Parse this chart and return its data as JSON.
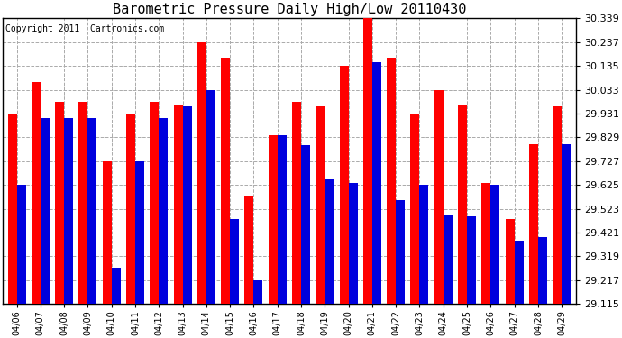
{
  "title": "Barometric Pressure Daily High/Low 20110430",
  "copyright": "Copyright 2011  Cartronics.com",
  "dates": [
    "04/06",
    "04/07",
    "04/08",
    "04/09",
    "04/10",
    "04/11",
    "04/12",
    "04/13",
    "04/14",
    "04/15",
    "04/16",
    "04/17",
    "04/18",
    "04/19",
    "04/20",
    "04/21",
    "04/22",
    "04/23",
    "04/24",
    "04/25",
    "04/26",
    "04/27",
    "04/28",
    "04/29"
  ],
  "highs": [
    29.931,
    30.068,
    29.98,
    29.98,
    29.727,
    29.931,
    29.98,
    29.97,
    30.237,
    30.17,
    29.58,
    29.838,
    29.98,
    29.96,
    30.135,
    30.339,
    30.17,
    29.931,
    30.033,
    29.965,
    29.635,
    29.478,
    29.8,
    29.96
  ],
  "lows": [
    29.625,
    29.912,
    29.912,
    29.912,
    29.27,
    29.727,
    29.912,
    29.96,
    30.033,
    29.48,
    29.217,
    29.838,
    29.795,
    29.65,
    29.635,
    30.15,
    29.56,
    29.625,
    29.5,
    29.49,
    29.625,
    29.385,
    29.4,
    29.8
  ],
  "high_color": "#FF0000",
  "low_color": "#0000DD",
  "background_color": "#FFFFFF",
  "plot_bg_color": "#FFFFFF",
  "grid_color": "#AAAAAA",
  "yticks": [
    29.115,
    29.217,
    29.319,
    29.421,
    29.523,
    29.625,
    29.727,
    29.829,
    29.931,
    30.033,
    30.135,
    30.237,
    30.339
  ],
  "ymin": 29.115,
  "ymax": 30.339,
  "title_fontsize": 11,
  "copyright_fontsize": 7,
  "bar_width": 0.38
}
